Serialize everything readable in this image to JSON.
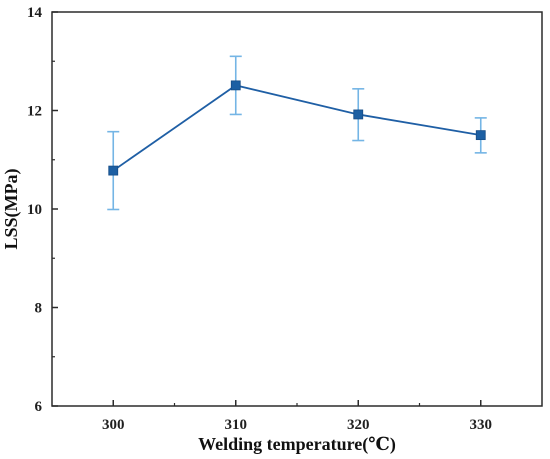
{
  "chart_data": {
    "type": "line",
    "title": "",
    "xlabel": "Welding temperature(℃)",
    "ylabel": "LSS(MPa)",
    "x": [
      300,
      310,
      320,
      330
    ],
    "x_ticks": [
      "300",
      "310",
      "320",
      "330"
    ],
    "y_ticks": [
      "6",
      "8",
      "10",
      "12",
      "14"
    ],
    "xlim": [
      295,
      335
    ],
    "ylim": [
      6,
      14
    ],
    "grid": false,
    "legend": "none",
    "series": [
      {
        "values": [
          10.78,
          12.51,
          11.92,
          11.5
        ],
        "error_upper": [
          11.57,
          13.1,
          12.44,
          11.85
        ],
        "error_lower": [
          9.99,
          11.92,
          11.39,
          11.14
        ],
        "line_color": "#1f5fa5",
        "marker_color": "#1c5fa3",
        "error_bar_color": "#74b5e5",
        "marker": "square"
      }
    ]
  }
}
